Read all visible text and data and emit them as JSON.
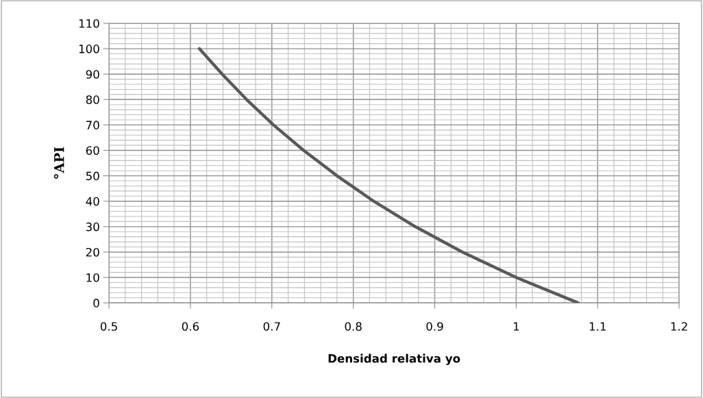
{
  "chart_data": {
    "type": "line",
    "xlabel": "Densidad relativa yo",
    "ylabel": "°API",
    "x": [
      0.611,
      0.639,
      0.669,
      0.702,
      0.739,
      0.78,
      0.825,
      0.876,
      0.934,
      1.0,
      1.076
    ],
    "series": [
      {
        "color": "#595959",
        "values": [
          100,
          90,
          80,
          70,
          60,
          50,
          40,
          30,
          20,
          10,
          0
        ]
      }
    ],
    "xlim": [
      0.5,
      1.2
    ],
    "xticks": [
      0.5,
      0.6,
      0.7,
      0.8,
      0.9,
      {
        "value": 1,
        "label": "1"
      },
      1.1,
      1.2
    ],
    "ylim": [
      0,
      110
    ],
    "yticks": [
      0,
      10,
      20,
      30,
      40,
      50,
      60,
      70,
      80,
      90,
      100,
      110
    ],
    "grid": true,
    "marker": "none",
    "line_style": "solid",
    "legend": false
  }
}
